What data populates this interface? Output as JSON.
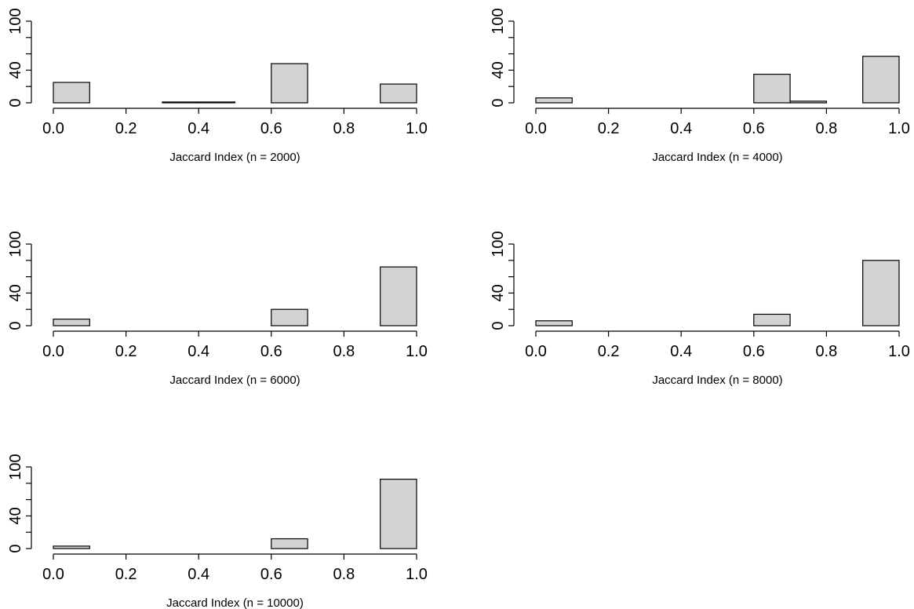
{
  "style": {
    "bar_fill": "#d3d3d3",
    "bar_stroke": "#000000",
    "background": "#ffffff"
  },
  "chart_data": [
    {
      "type": "bar",
      "title": "",
      "xlabel": "Jaccard Index (n = 2000)",
      "ylabel": "",
      "bin_edges": [
        0.0,
        0.1,
        0.2,
        0.3,
        0.4,
        0.5,
        0.6,
        0.7,
        0.8,
        0.9,
        1.0
      ],
      "values": [
        25,
        0,
        0,
        1,
        1,
        0,
        48,
        0,
        0,
        23
      ],
      "xlim": [
        0,
        1
      ],
      "ylim": [
        0,
        100
      ],
      "xticks": [
        "0.0",
        "0.2",
        "0.4",
        "0.6",
        "0.8",
        "1.0"
      ],
      "yticks": [
        "0",
        "40",
        "100"
      ],
      "grid": false
    },
    {
      "type": "bar",
      "title": "",
      "xlabel": "Jaccard Index (n = 4000)",
      "ylabel": "",
      "bin_edges": [
        0.0,
        0.1,
        0.2,
        0.3,
        0.4,
        0.5,
        0.6,
        0.7,
        0.8,
        0.9,
        1.0
      ],
      "values": [
        6,
        0,
        0,
        0,
        0,
        0,
        35,
        2,
        0,
        57
      ],
      "xlim": [
        0,
        1
      ],
      "ylim": [
        0,
        100
      ],
      "xticks": [
        "0.0",
        "0.2",
        "0.4",
        "0.6",
        "0.8",
        "1.0"
      ],
      "yticks": [
        "0",
        "40",
        "100"
      ],
      "grid": false
    },
    {
      "type": "bar",
      "title": "",
      "xlabel": "Jaccard Index (n = 6000)",
      "ylabel": "",
      "bin_edges": [
        0.0,
        0.1,
        0.2,
        0.3,
        0.4,
        0.5,
        0.6,
        0.7,
        0.8,
        0.9,
        1.0
      ],
      "values": [
        8,
        0,
        0,
        0,
        0,
        0,
        20,
        0,
        0,
        72
      ],
      "xlim": [
        0,
        1
      ],
      "ylim": [
        0,
        100
      ],
      "xticks": [
        "0.0",
        "0.2",
        "0.4",
        "0.6",
        "0.8",
        "1.0"
      ],
      "yticks": [
        "0",
        "40",
        "100"
      ],
      "grid": false
    },
    {
      "type": "bar",
      "title": "",
      "xlabel": "Jaccard Index (n = 8000)",
      "ylabel": "",
      "bin_edges": [
        0.0,
        0.1,
        0.2,
        0.3,
        0.4,
        0.5,
        0.6,
        0.7,
        0.8,
        0.9,
        1.0
      ],
      "values": [
        6,
        0,
        0,
        0,
        0,
        0,
        14,
        0,
        0,
        80
      ],
      "xlim": [
        0,
        1
      ],
      "ylim": [
        0,
        100
      ],
      "xticks": [
        "0.0",
        "0.2",
        "0.4",
        "0.6",
        "0.8",
        "1.0"
      ],
      "yticks": [
        "0",
        "40",
        "100"
      ],
      "grid": false
    },
    {
      "type": "bar",
      "title": "",
      "xlabel": "Jaccard Index (n = 10000)",
      "ylabel": "",
      "bin_edges": [
        0.0,
        0.1,
        0.2,
        0.3,
        0.4,
        0.5,
        0.6,
        0.7,
        0.8,
        0.9,
        1.0
      ],
      "values": [
        3,
        0,
        0,
        0,
        0,
        0,
        12,
        0,
        0,
        85
      ],
      "xlim": [
        0,
        1
      ],
      "ylim": [
        0,
        100
      ],
      "xticks": [
        "0.0",
        "0.2",
        "0.4",
        "0.6",
        "0.8",
        "1.0"
      ],
      "yticks": [
        "0",
        "40",
        "100"
      ],
      "grid": false
    }
  ]
}
